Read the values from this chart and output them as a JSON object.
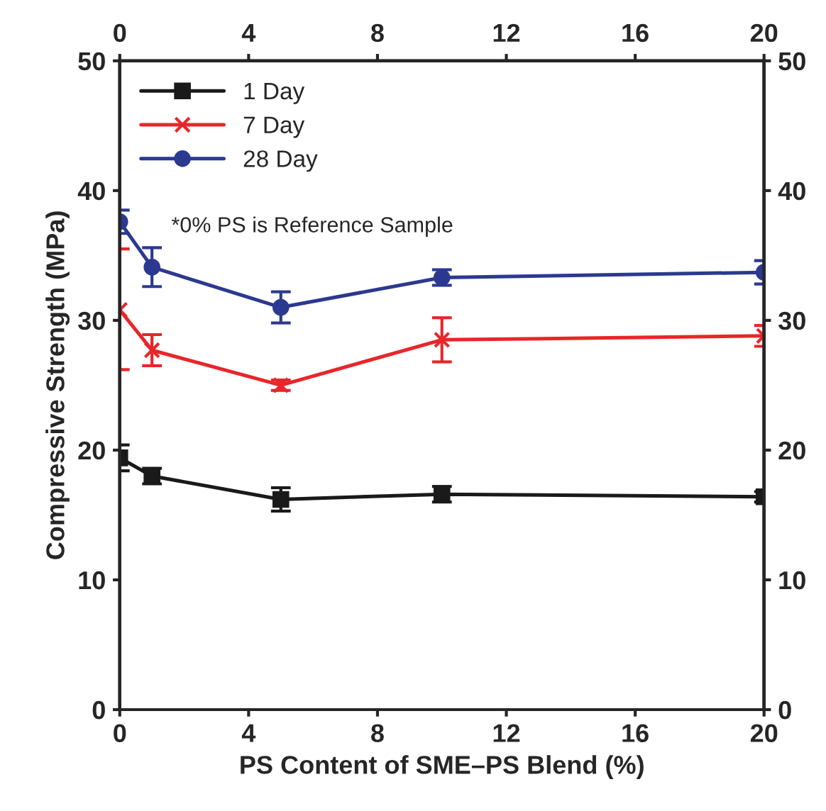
{
  "chart_data": {
    "type": "line",
    "xlabel": "PS Content of SME–PS Blend (%)",
    "ylabel": "Compressive Strength (MPa)",
    "x": [
      0,
      1,
      5,
      10,
      20
    ],
    "series": [
      {
        "name": "1 Day",
        "color": "#1a1a1a",
        "marker": "square",
        "values": [
          19.4,
          18.0,
          16.2,
          16.6,
          16.4
        ],
        "errors": [
          1.0,
          0.6,
          0.9,
          0.6,
          0.4
        ]
      },
      {
        "name": "7 Day",
        "color": "#e8262a",
        "marker": "cross",
        "values": [
          30.8,
          27.7,
          25.0,
          28.5,
          28.8
        ],
        "errors": [
          [
            26.2,
            35.5
          ],
          1.2,
          0.4,
          1.7,
          0.8
        ]
      },
      {
        "name": "28 Day",
        "color": "#2b3990",
        "marker": "circle",
        "values": [
          37.6,
          34.1,
          31.0,
          33.3,
          33.7
        ],
        "errors": [
          0.9,
          1.5,
          1.2,
          0.6,
          0.9
        ]
      }
    ],
    "xlim": [
      0,
      20
    ],
    "xticks": [
      0,
      4,
      8,
      12,
      16,
      20
    ],
    "x2lim": [
      0,
      20
    ],
    "x2ticks": [
      0,
      4,
      8,
      12,
      16,
      20
    ],
    "ylim": [
      0,
      50
    ],
    "yticks": [
      0,
      10,
      20,
      30,
      40,
      50
    ],
    "y2lim": [
      0,
      50
    ],
    "y2ticks": [
      0,
      10,
      20,
      30,
      40,
      50
    ],
    "grid": false,
    "legend": "top left",
    "line_style": "solid",
    "annotations": [
      "*0% PS is Reference Sample"
    ]
  }
}
